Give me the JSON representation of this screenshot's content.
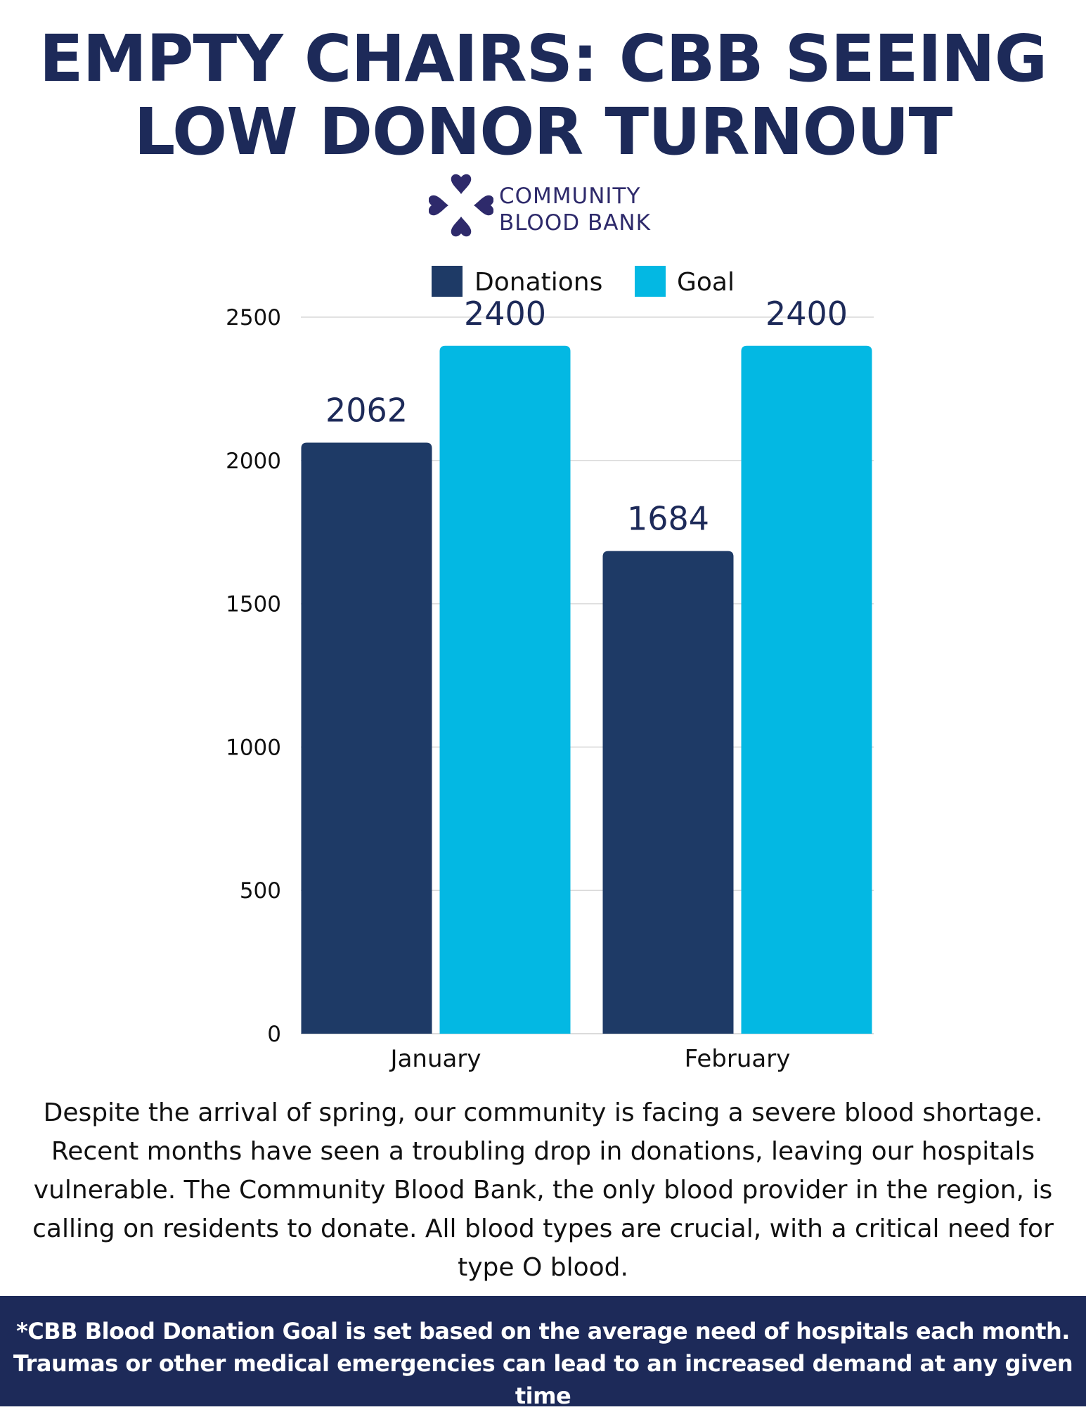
{
  "title": {
    "line1": "EMPTY CHAIRS: CBB SEEING",
    "line2": "LOW DONOR TURNOUT"
  },
  "logo": {
    "icon": "heart-cluster-icon",
    "line1": "COMMUNITY",
    "line2": "BLOOD BANK",
    "color": "#2e2a6b"
  },
  "chart_data": {
    "type": "bar",
    "categories": [
      "January",
      "February"
    ],
    "series": [
      {
        "name": "Donations",
        "values": [
          2062,
          1684
        ],
        "color": "#1e3a66"
      },
      {
        "name": "Goal",
        "values": [
          2400,
          2400
        ],
        "color": "#03b8e3"
      }
    ],
    "ylim": [
      0,
      2500
    ],
    "yticks": [
      0,
      500,
      1000,
      1500,
      2000,
      2500
    ],
    "data_labels": true,
    "grid": true,
    "legend": "top-center",
    "xlabel": "",
    "ylabel": ""
  },
  "description": "Despite the arrival of spring, our community is facing a severe blood shortage. Recent months have seen a troubling drop in donations, leaving our hospitals vulnerable. The Community Blood Bank, the only blood provider in the region, is calling on residents to donate. All blood types are crucial, with a critical need for type O blood.",
  "footer": {
    "line1": "*CBB Blood Donation Goal is set based on the average need of hospitals each month.",
    "line2": "Traumas or other medical emergencies can lead to an increased demand at any given time"
  },
  "colors": {
    "title": "#1d2a59",
    "footer_bg": "#1d2a59"
  }
}
